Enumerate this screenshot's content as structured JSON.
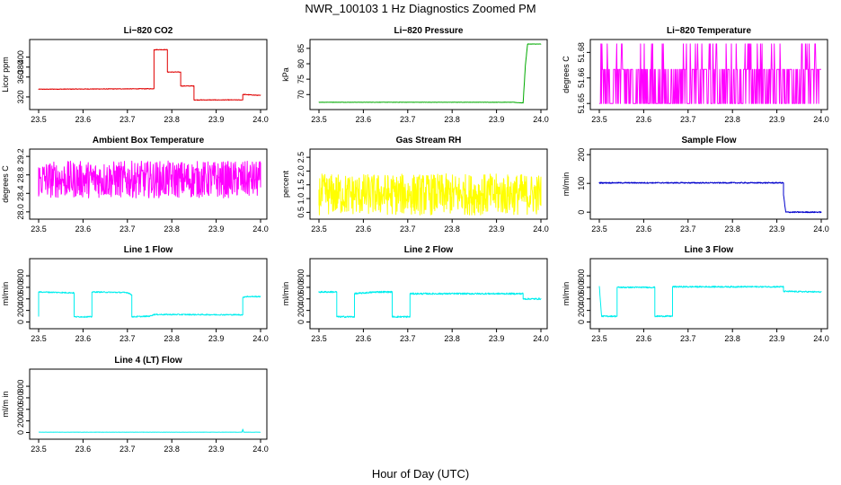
{
  "figure": {
    "title": "NWR_100103  1 Hz Diagnostics Zoomed PM",
    "xlabel": "Hour of Day (UTC)"
  },
  "chart_data": [
    {
      "type": "line",
      "title": "Li−820 CO2",
      "ylabel": "Licor ppm",
      "color": "#e00000",
      "xlim": [
        23.5,
        24.0
      ],
      "ylim": [
        300,
        430
      ],
      "xticks": [
        "23.5",
        "23.6",
        "23.7",
        "23.8",
        "23.9",
        "24.0"
      ],
      "yticks": [
        {
          "v": 320,
          "label": "320"
        },
        {
          "v": 360,
          "label": "360"
        },
        {
          "v": 380,
          "label": "380"
        },
        {
          "v": 400,
          "label": "400"
        }
      ],
      "series": [
        {
          "name": "CO2",
          "noise": 0.6,
          "x": [
            23.5,
            23.76,
            23.76,
            23.79,
            23.79,
            23.82,
            23.82,
            23.85,
            23.85,
            23.88,
            23.88,
            23.96,
            23.96,
            24.0
          ],
          "y": [
            335.5,
            336.5,
            415,
            415,
            370,
            370,
            342,
            342,
            314,
            314,
            314,
            314,
            325,
            323
          ]
        }
      ]
    },
    {
      "type": "line",
      "title": "Li−820 Pressure",
      "ylabel": "kPa",
      "color": "#00aa00",
      "xlim": [
        23.5,
        24.0
      ],
      "ylim": [
        66,
        87
      ],
      "xticks": [
        "23.5",
        "23.6",
        "23.7",
        "23.8",
        "23.9",
        "24.0"
      ],
      "yticks": [
        {
          "v": 70,
          "label": "70"
        },
        {
          "v": 75,
          "label": "75"
        },
        {
          "v": 80,
          "label": "80"
        },
        {
          "v": 85,
          "label": "85"
        }
      ],
      "series": [
        {
          "name": "Pressure",
          "noise": 0.05,
          "x": [
            23.5,
            23.94,
            23.945,
            23.96,
            23.965,
            23.97,
            24.0
          ],
          "y": [
            67.5,
            67.5,
            67.4,
            67.3,
            79.5,
            86.4,
            86.4
          ]
        }
      ]
    },
    {
      "type": "line",
      "title": "Li−820 Temperature",
      "ylabel": "degrees C",
      "color": "#ff00ff",
      "xlim": [
        23.5,
        24.0
      ],
      "ylim": [
        51.648,
        51.686
      ],
      "xticks": [
        "23.5",
        "23.6",
        "23.7",
        "23.8",
        "23.9",
        "24.0"
      ],
      "yticks": [
        {
          "v": 51.65,
          "label": "51.65"
        },
        {
          "v": 51.665,
          "label": "51.66"
        },
        {
          "v": 51.68,
          "label": "51.68"
        }
      ],
      "series": [
        {
          "name": "Temperature",
          "levels": [
            51.65,
            51.67,
            51.685
          ],
          "weights": [
            0.45,
            0.45,
            0.1
          ],
          "n": 420,
          "x": [
            23.5,
            24.0
          ],
          "y": [
            51.67,
            51.67
          ]
        }
      ]
    },
    {
      "type": "line",
      "title": "Ambient Box Temperature",
      "ylabel": "degrees C",
      "color": "#ff00ff",
      "xlim": [
        23.5,
        24.0
      ],
      "ylim": [
        27.9,
        29.3
      ],
      "xticks": [
        "23.5",
        "23.6",
        "23.7",
        "23.8",
        "23.9",
        "24.0"
      ],
      "yticks": [
        {
          "v": 28.0,
          "label": "28.0"
        },
        {
          "v": 28.4,
          "label": "28.4"
        },
        {
          "v": 28.8,
          "label": "28.8"
        },
        {
          "v": 29.2,
          "label": "29.2"
        }
      ],
      "series": [
        {
          "name": "Box Temp",
          "noise": 0.4,
          "n": 600,
          "x": [
            23.5,
            24.0
          ],
          "y": [
            28.7,
            28.7
          ]
        }
      ]
    },
    {
      "type": "line",
      "title": "Gas Stream RH",
      "ylabel": "percent",
      "color": "#ffff00",
      "xlim": [
        23.5,
        24.0
      ],
      "ylim": [
        0.35,
        2.7
      ],
      "xticks": [
        "23.5",
        "23.6",
        "23.7",
        "23.8",
        "23.9",
        "24.0"
      ],
      "yticks": [
        {
          "v": 0.5,
          "label": "0.5"
        },
        {
          "v": 1.0,
          "label": "1.0"
        },
        {
          "v": 1.5,
          "label": "1.5"
        },
        {
          "v": 2.0,
          "label": "2.0"
        },
        {
          "v": 2.5,
          "label": "2.5"
        }
      ],
      "series": [
        {
          "name": "RH",
          "noise": 0.75,
          "n": 600,
          "x": [
            23.5,
            24.0
          ],
          "y": [
            1.15,
            1.15
          ]
        }
      ]
    },
    {
      "type": "line",
      "title": "Sample Flow",
      "ylabel": "ml/min",
      "color": "#0000cc",
      "xlim": [
        23.5,
        24.0
      ],
      "ylim": [
        -15,
        210
      ],
      "xticks": [
        "23.5",
        "23.6",
        "23.7",
        "23.8",
        "23.9",
        "24.0"
      ],
      "yticks": [
        {
          "v": 0,
          "label": "0"
        },
        {
          "v": 100,
          "label": "100"
        },
        {
          "v": 200,
          "label": "200"
        }
      ],
      "series": [
        {
          "name": "Sample Flow",
          "noise": 2,
          "x": [
            23.5,
            23.915,
            23.915,
            23.92,
            24.0
          ],
          "y": [
            102,
            102,
            60,
            0,
            0
          ]
        }
      ]
    },
    {
      "type": "line",
      "title": "Line 1 Flow",
      "ylabel": "ml/min",
      "color": "#00eeee",
      "xlim": [
        23.5,
        24.0
      ],
      "ylim": [
        -70,
        1050
      ],
      "xticks": [
        "23.5",
        "23.6",
        "23.7",
        "23.8",
        "23.9",
        "24.0"
      ],
      "yticks": [
        {
          "v": 0,
          "label": "0"
        },
        {
          "v": 200,
          "label": "200"
        },
        {
          "v": 400,
          "label": "400"
        },
        {
          "v": 600,
          "label": "600"
        },
        {
          "v": 800,
          "label": "800"
        }
      ],
      "series": [
        {
          "name": "Line 1",
          "noise": 10,
          "x": [
            23.5,
            23.5,
            23.502,
            23.58,
            23.58,
            23.62,
            23.62,
            23.7,
            23.71,
            23.71,
            23.75,
            23.76,
            23.96,
            23.96,
            23.965,
            24.0
          ],
          "y": [
            100,
            520,
            520,
            505,
            90,
            90,
            520,
            510,
            470,
            90,
            100,
            130,
            125,
            420,
            440,
            440
          ]
        }
      ]
    },
    {
      "type": "line",
      "title": "Line 2 Flow",
      "ylabel": "ml/min",
      "color": "#00eeee",
      "xlim": [
        23.5,
        24.0
      ],
      "ylim": [
        -70,
        1050
      ],
      "xticks": [
        "23.5",
        "23.6",
        "23.7",
        "23.8",
        "23.9",
        "24.0"
      ],
      "yticks": [
        {
          "v": 0,
          "label": "0"
        },
        {
          "v": 200,
          "label": "200"
        },
        {
          "v": 400,
          "label": "400"
        },
        {
          "v": 600,
          "label": "600"
        },
        {
          "v": 800,
          "label": "800"
        }
      ],
      "series": [
        {
          "name": "Line 2",
          "noise": 14,
          "x": [
            23.5,
            23.54,
            23.54,
            23.58,
            23.58,
            23.63,
            23.665,
            23.665,
            23.705,
            23.705,
            23.96,
            23.96,
            24.0
          ],
          "y": [
            520,
            520,
            90,
            90,
            490,
            520,
            520,
            90,
            90,
            490,
            490,
            400,
            400
          ]
        }
      ]
    },
    {
      "type": "line",
      "title": "Line 3 Flow",
      "ylabel": "ml/min",
      "color": "#00eeee",
      "xlim": [
        23.5,
        24.0
      ],
      "ylim": [
        -70,
        1050
      ],
      "xticks": [
        "23.5",
        "23.6",
        "23.7",
        "23.8",
        "23.9",
        "24.0"
      ],
      "yticks": [
        {
          "v": 0,
          "label": "0"
        },
        {
          "v": 200,
          "label": "200"
        },
        {
          "v": 400,
          "label": "400"
        },
        {
          "v": 600,
          "label": "600"
        },
        {
          "v": 800,
          "label": "800"
        }
      ],
      "series": [
        {
          "name": "Line 3",
          "noise": 12,
          "x": [
            23.5,
            23.5,
            23.505,
            23.54,
            23.54,
            23.625,
            23.625,
            23.665,
            23.665,
            23.915,
            23.915,
            24.0
          ],
          "y": [
            620,
            620,
            100,
            100,
            600,
            600,
            100,
            100,
            610,
            610,
            530,
            520
          ]
        }
      ]
    },
    {
      "type": "line",
      "title": "Line 4 (LT) Flow",
      "ylabel": "ml/m in",
      "color": "#00eeee",
      "xlim": [
        23.5,
        24.0
      ],
      "ylim": [
        -70,
        1050
      ],
      "xticks": [
        "23.5",
        "23.6",
        "23.7",
        "23.8",
        "23.9",
        "24.0"
      ],
      "yticks": [
        {
          "v": 0,
          "label": "0"
        },
        {
          "v": 200,
          "label": "200"
        },
        {
          "v": 400,
          "label": "400"
        },
        {
          "v": 600,
          "label": "600"
        },
        {
          "v": 800,
          "label": "800"
        }
      ],
      "series": [
        {
          "name": "Line 4",
          "noise": 2,
          "x": [
            23.5,
            23.958,
            23.96,
            23.962,
            24.0
          ],
          "y": [
            5,
            5,
            55,
            5,
            5
          ]
        }
      ]
    }
  ]
}
